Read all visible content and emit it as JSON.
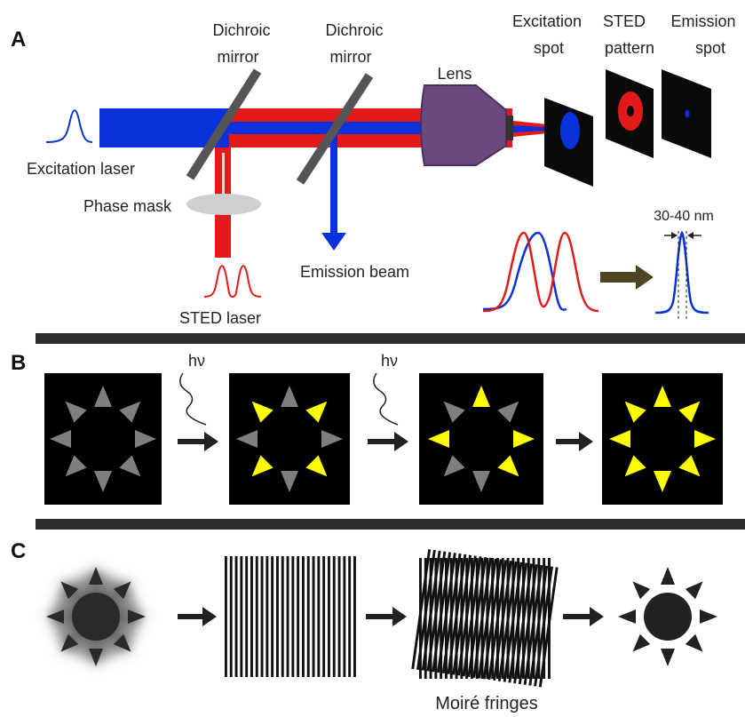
{
  "panels": {
    "a": "A",
    "b": "B",
    "c": "C"
  },
  "panel_a": {
    "dichroic_mirror_1": [
      "Dichroic",
      "mirror"
    ],
    "dichroic_mirror_2": [
      "Dichroic",
      "mirror"
    ],
    "lens": "Lens",
    "excitation_spot": [
      "Excitation",
      "spot"
    ],
    "sted_pattern": [
      "STED",
      "pattern"
    ],
    "emission_spot": [
      "Emission",
      "spot"
    ],
    "excitation_laser": "Excitation laser",
    "phase_mask": "Phase mask",
    "sted_laser": "STED laser",
    "emission_beam": "Emission beam",
    "resolution": "30-40 nm"
  },
  "panel_b": {
    "photon_1": "hν",
    "photon_2": "hν"
  },
  "panel_c": {
    "moire": "Moiré fringes"
  },
  "colors": {
    "excitation_blue": "#0a32dc",
    "sted_red": "#e21a1a",
    "lens_purple": "#6a4a7e",
    "arrow_olive": "#4f4522",
    "switched_yellow": "#ffff00",
    "off_gray": "#7f7f7f"
  }
}
